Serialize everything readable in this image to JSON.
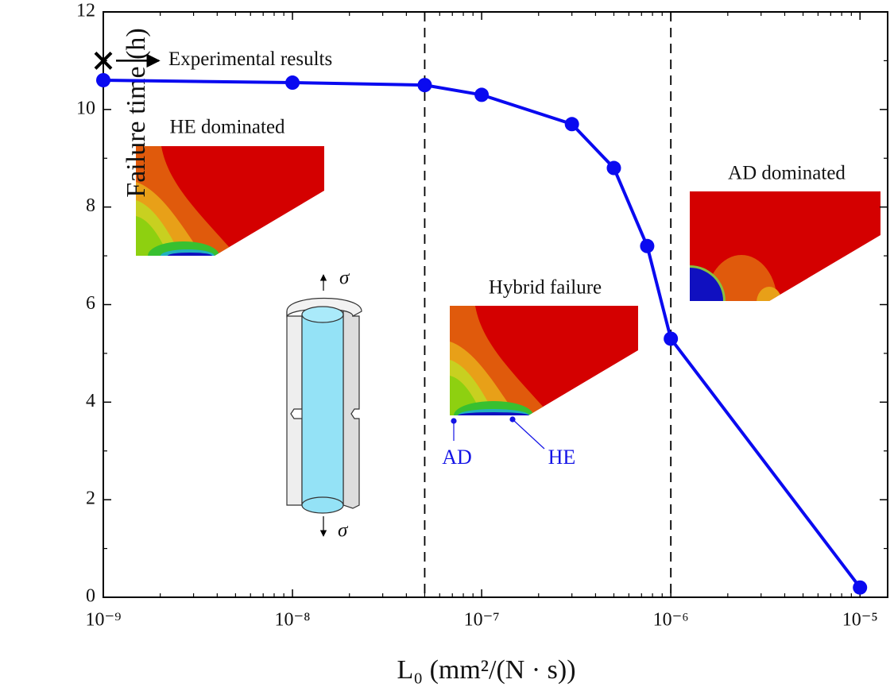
{
  "chart_data": {
    "type": "line",
    "x_label": "L₀ (mm²/(N · s))",
    "y_label": "Failure time (h)",
    "x": [
      1e-09,
      1e-08,
      5e-08,
      1e-07,
      3e-07,
      5e-07,
      7.5e-07,
      1e-06,
      1e-05
    ],
    "series": [
      {
        "color": "#0a0af0",
        "values": [
          10.6,
          10.55,
          10.5,
          10.3,
          9.7,
          8.8,
          7.2,
          5.3,
          0.2
        ]
      }
    ],
    "xscale": "log",
    "xlim": [
      1e-09,
      1.4e-05
    ],
    "xticks": [
      {
        "value": 1e-09,
        "label": "10⁻⁹"
      },
      {
        "value": 1e-08,
        "label": "10⁻⁸"
      },
      {
        "value": 1e-07,
        "label": "10⁻⁷"
      },
      {
        "value": 1e-06,
        "label": "10⁻⁶"
      },
      {
        "value": 1e-05,
        "label": "10⁻⁵"
      }
    ],
    "ylim": [
      0,
      12
    ],
    "yticks": [
      0,
      2,
      4,
      6,
      8,
      10,
      12
    ],
    "vlines": [
      5e-08,
      1e-06
    ],
    "experimental": {
      "x": 1e-09,
      "y": 11,
      "label": "Experimental results"
    },
    "annotations": {
      "he": "HE dominated",
      "hybrid": "Hybrid failure",
      "ad": "AD dominated",
      "ad_point": "AD",
      "he_point": "HE",
      "sigma_top": "σ",
      "sigma_bottom": "σ"
    }
  }
}
